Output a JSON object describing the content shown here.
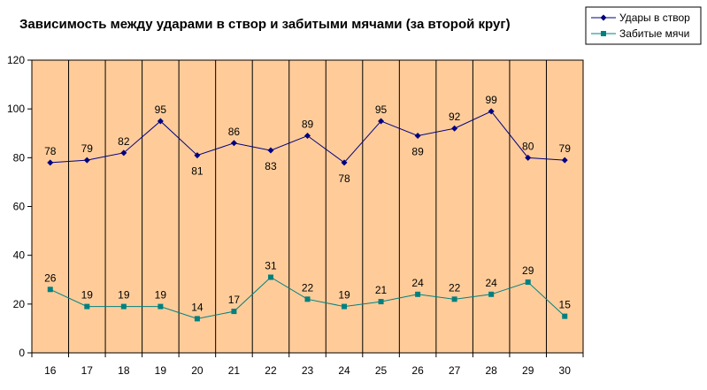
{
  "chart_data": {
    "type": "line",
    "title": "Зависимость между ударами в створ и забитыми мячами (за второй круг)",
    "xlabel": "",
    "ylabel": "",
    "categories": [
      "16",
      "17",
      "18",
      "19",
      "20",
      "21",
      "22",
      "23",
      "24",
      "25",
      "26",
      "27",
      "28",
      "29",
      "30"
    ],
    "ylim": [
      0,
      120
    ],
    "yticks": [
      0,
      20,
      40,
      60,
      80,
      100,
      120
    ],
    "grid": "vertical",
    "legend": "top-right",
    "plot_background": "#FFCC99",
    "series": [
      {
        "name": "Удары в створ",
        "color": "#000080",
        "marker": "diamond",
        "values": [
          78,
          79,
          82,
          95,
          81,
          86,
          83,
          89,
          78,
          95,
          89,
          92,
          99,
          80,
          79
        ],
        "label_position": [
          "above",
          "above",
          "above",
          "above",
          "below",
          "above",
          "below",
          "above",
          "below",
          "above",
          "below",
          "above",
          "above",
          "above",
          "above"
        ]
      },
      {
        "name": "Забитые мячи",
        "color": "#008080",
        "marker": "square",
        "values": [
          26,
          19,
          19,
          19,
          14,
          17,
          31,
          22,
          19,
          21,
          24,
          22,
          24,
          29,
          15
        ],
        "label_position": [
          "above",
          "above",
          "above",
          "above",
          "above",
          "above",
          "above",
          "above",
          "above",
          "above",
          "above",
          "above",
          "above",
          "above",
          "above"
        ]
      }
    ]
  }
}
